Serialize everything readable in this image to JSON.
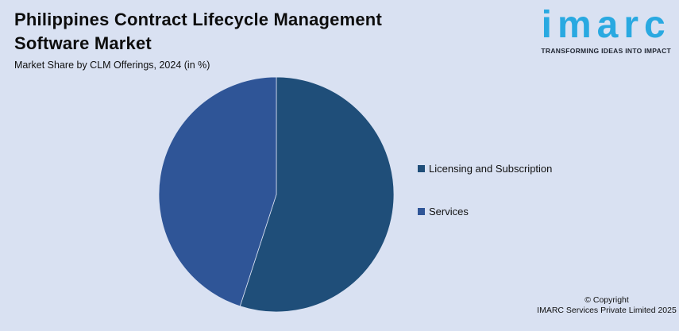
{
  "header": {
    "title": "Philippines Contract Lifecycle Management Software Market",
    "subtitle": "Market Share by CLM Offerings, 2024 (in %)"
  },
  "logo": {
    "brand": "imarc",
    "tagline": "TRANSFORMING IDEAS INTO IMPACT",
    "brand_color": "#29A9E1"
  },
  "chart_data": {
    "type": "pie",
    "title": "Philippines Contract Lifecycle Management Software Market",
    "subtitle": "Market Share by CLM Offerings, 2024 (in %)",
    "unit": "%",
    "categories": [
      "Licensing and Subscription",
      "Services"
    ],
    "values": [
      55,
      45
    ],
    "colors": [
      "#1F4E79",
      "#2F5597"
    ],
    "start_angle_deg": 0,
    "direction": "clockwise",
    "legend_position": "right",
    "data_labels_shown": false,
    "background_color": "#D9E1F2"
  },
  "legend": {
    "items": [
      {
        "label": "Licensing and Subscription",
        "color": "#1F4E79"
      },
      {
        "label": "Services",
        "color": "#2F5597"
      }
    ]
  },
  "footer": {
    "copyright_line1": "© Copyright",
    "copyright_line2": "IMARC Services Private Limited 2025"
  }
}
